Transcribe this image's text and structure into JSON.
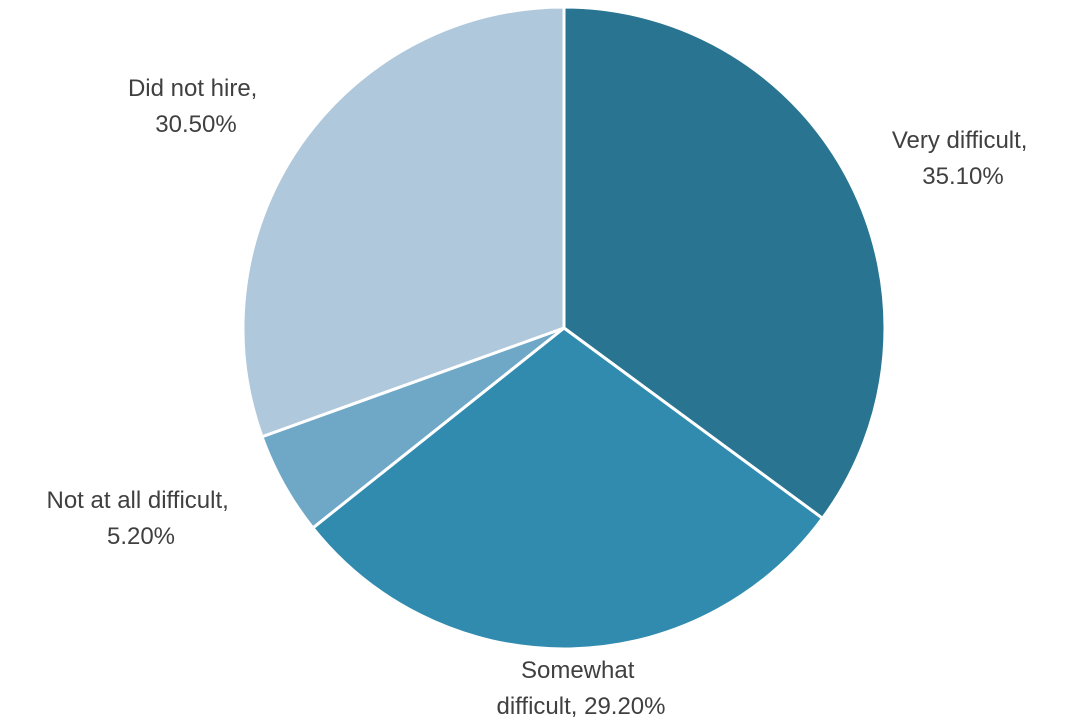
{
  "chart_data": {
    "type": "pie",
    "title": "",
    "start": "12 o'clock",
    "direction": "clockwise",
    "slices": [
      {
        "label_lines": [
          "Very difficult,",
          "35.10%"
        ],
        "category": "Very difficult",
        "value": 35.1,
        "color": "#287491"
      },
      {
        "label_lines": [
          "Somewhat",
          "difficult, 29.20%"
        ],
        "category": "Somewhat difficult",
        "value": 29.2,
        "color": "#318bae"
      },
      {
        "label_lines": [
          "Not at all difficult,",
          "5.20%"
        ],
        "category": "Not at all difficult",
        "value": 5.2,
        "color": "#6fa8c6"
      },
      {
        "label_lines": [
          "Did not hire,",
          "30.50%"
        ],
        "category": "Did not hire",
        "value": 30.5,
        "color": "#b0c8db"
      }
    ]
  }
}
